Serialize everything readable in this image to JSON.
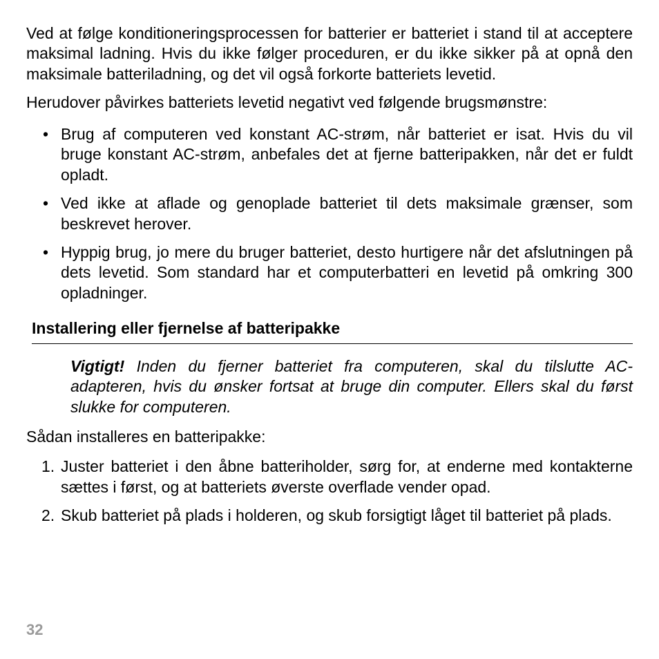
{
  "colors": {
    "text": "#000000",
    "background": "#ffffff",
    "page_number": "#9a9a9a",
    "rule": "#000000"
  },
  "typography": {
    "body_fontsize_pt": 17,
    "heading_fontsize_pt": 17,
    "font_family": "Arial"
  },
  "intro_para": "Ved at følge konditioneringsprocessen for batterier er batteriet i stand til at acceptere maksimal ladning. Hvis du ikke følger proceduren, er du ikke sikker på at opnå den maksimale batteriladning, og det vil også forkorte batteriets levetid.",
  "para2": "Herudover påvirkes batteriets levetid negativt ved følgende brugsmønstre:",
  "bullets": [
    "Brug af computeren ved konstant AC-strøm, når batteriet er isat. Hvis du vil bruge konstant AC-strøm, anbefales det at fjerne batteripakken, når det er fuldt opladt.",
    "Ved ikke at aflade og genoplade batteriet til dets maksimale grænser, som beskrevet herover.",
    "Hyppig brug, jo mere du bruger batteriet, desto hurtigere når det afslutningen på dets levetid. Som standard har et computerbatteri en levetid på omkring 300 opladninger."
  ],
  "section_heading": "Installering eller fjernelse af batteripakke",
  "note": {
    "label": "Vigtigt!",
    "text": " Inden du fjerner batteriet fra computeren, skal du tilslutte AC-adapteren, hvis du ønsker fortsat at bruge din computer. Ellers skal du først slukke for computeren."
  },
  "lead": "Sådan installeres en batteripakke:",
  "steps": [
    "Juster batteriet i den åbne batteriholder, sørg for, at enderne med kontakterne sættes i først, og at batteriets øverste overflade vender opad.",
    "Skub batteriet på plads i holderen, og skub forsigtigt låget til batteriet på plads."
  ],
  "page_number": "32"
}
